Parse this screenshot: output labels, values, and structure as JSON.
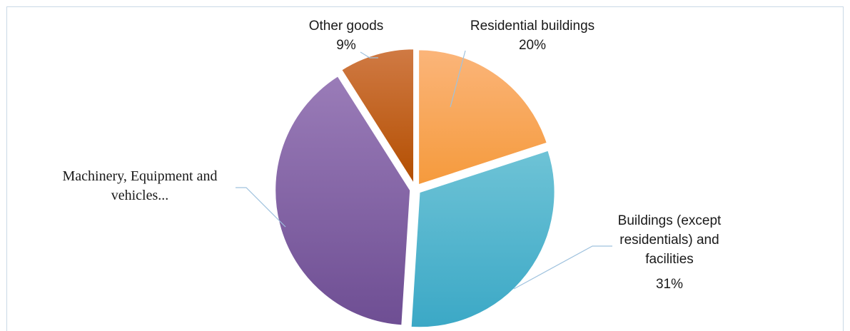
{
  "chart_data": {
    "type": "pie",
    "title": "",
    "slices": [
      {
        "label": "Residential buildings",
        "value": 20,
        "value_label": "20%",
        "colors": [
          "#f59a3c",
          "#fbb57a"
        ]
      },
      {
        "label": "Buildings (except residentials) and facilities",
        "label_lines": [
          "Buildings (except",
          "residentials) and",
          "facilities"
        ],
        "value": 31,
        "value_label": "31%",
        "colors": [
          "#3ba8c6",
          "#6ec3d6"
        ]
      },
      {
        "label": "Machinery, Equipment and vehicles...",
        "label_lines": [
          "Machinery, Equipment and",
          "vehicles..."
        ],
        "value": 40,
        "value_label": "",
        "colors": [
          "#6e4e93",
          "#9a7cb8"
        ]
      },
      {
        "label": "Other goods",
        "value": 9,
        "value_label": "9%",
        "colors": [
          "#b34e00",
          "#d07a44"
        ]
      }
    ],
    "start_angle_deg": 0,
    "exploded": true,
    "legend": "none",
    "leader_line_color": "#9fc2de"
  }
}
